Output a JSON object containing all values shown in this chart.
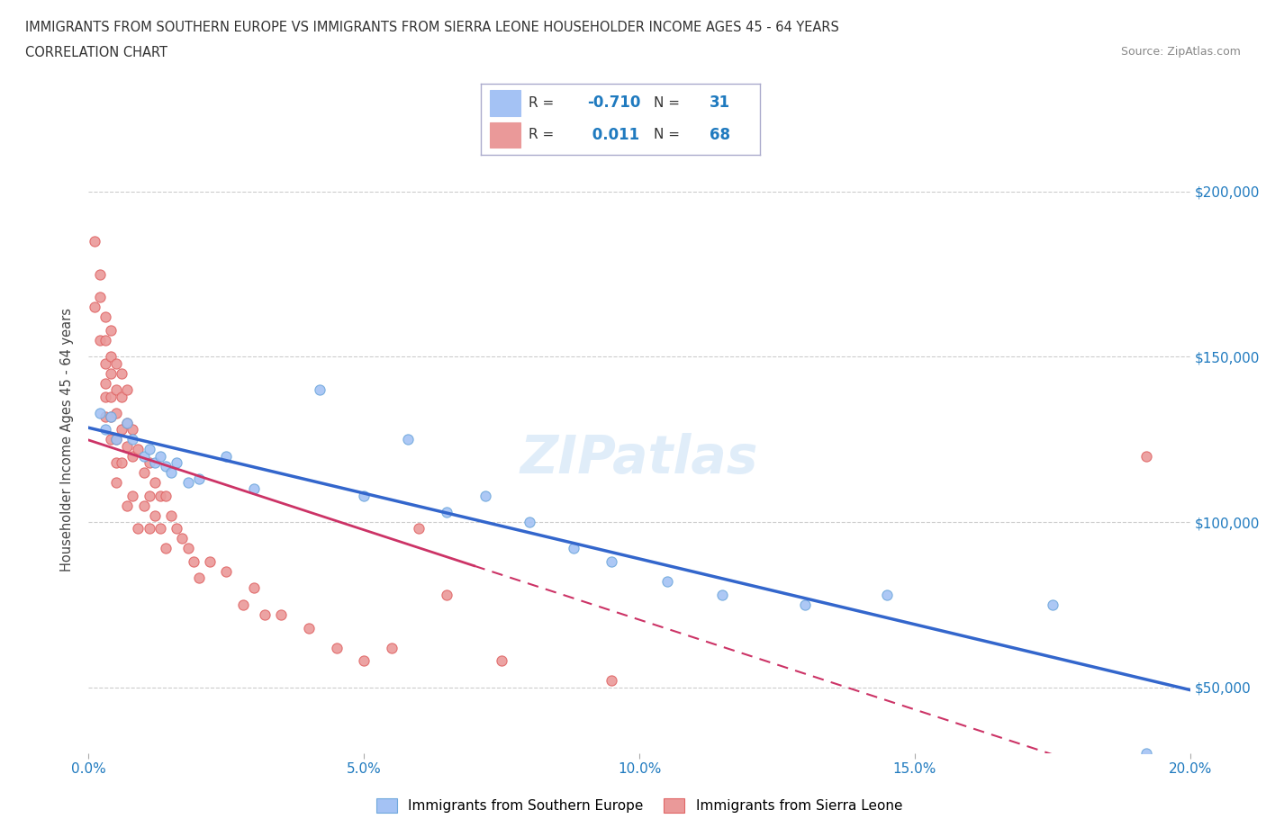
{
  "title_line1": "IMMIGRANTS FROM SOUTHERN EUROPE VS IMMIGRANTS FROM SIERRA LEONE HOUSEHOLDER INCOME AGES 45 - 64 YEARS",
  "title_line2": "CORRELATION CHART",
  "source_text": "Source: ZipAtlas.com",
  "ylabel": "Householder Income Ages 45 - 64 years",
  "xlim": [
    0.0,
    0.2
  ],
  "ylim": [
    30000,
    220000
  ],
  "xtick_labels": [
    "0.0%",
    "5.0%",
    "10.0%",
    "15.0%",
    "20.0%"
  ],
  "xtick_vals": [
    0.0,
    0.05,
    0.1,
    0.15,
    0.2
  ],
  "ytick_vals": [
    50000,
    100000,
    150000,
    200000
  ],
  "ytick_labels": [
    "$50,000",
    "$100,000",
    "$150,000",
    "$200,000"
  ],
  "ytick_color": "#1f7abf",
  "xtick_color": "#1f7abf",
  "blue_color": "#a4c2f4",
  "blue_edge_color": "#6fa8dc",
  "pink_color": "#ea9999",
  "pink_edge_color": "#e06666",
  "blue_line_color": "#3366cc",
  "pink_line_color": "#cc3366",
  "R_blue": -0.71,
  "N_blue": 31,
  "R_pink": 0.011,
  "N_pink": 68,
  "legend_label_blue": "Immigrants from Southern Europe",
  "legend_label_pink": "Immigrants from Sierra Leone",
  "blue_x": [
    0.002,
    0.003,
    0.004,
    0.005,
    0.007,
    0.008,
    0.01,
    0.011,
    0.012,
    0.013,
    0.014,
    0.015,
    0.016,
    0.018,
    0.02,
    0.025,
    0.03,
    0.042,
    0.05,
    0.058,
    0.065,
    0.072,
    0.08,
    0.088,
    0.095,
    0.105,
    0.115,
    0.13,
    0.145,
    0.175,
    0.192
  ],
  "blue_y": [
    133000,
    128000,
    132000,
    125000,
    130000,
    125000,
    120000,
    122000,
    118000,
    120000,
    117000,
    115000,
    118000,
    112000,
    113000,
    120000,
    110000,
    140000,
    108000,
    125000,
    103000,
    108000,
    100000,
    92000,
    88000,
    82000,
    78000,
    75000,
    78000,
    75000,
    30000
  ],
  "pink_x": [
    0.001,
    0.001,
    0.002,
    0.002,
    0.002,
    0.003,
    0.003,
    0.003,
    0.003,
    0.003,
    0.003,
    0.004,
    0.004,
    0.004,
    0.004,
    0.004,
    0.004,
    0.005,
    0.005,
    0.005,
    0.005,
    0.005,
    0.005,
    0.006,
    0.006,
    0.006,
    0.006,
    0.007,
    0.007,
    0.007,
    0.007,
    0.008,
    0.008,
    0.008,
    0.009,
    0.009,
    0.01,
    0.01,
    0.011,
    0.011,
    0.011,
    0.012,
    0.012,
    0.013,
    0.013,
    0.014,
    0.014,
    0.015,
    0.016,
    0.017,
    0.018,
    0.019,
    0.02,
    0.022,
    0.025,
    0.028,
    0.03,
    0.032,
    0.035,
    0.04,
    0.045,
    0.05,
    0.055,
    0.06,
    0.065,
    0.075,
    0.095,
    0.192
  ],
  "pink_y": [
    185000,
    165000,
    175000,
    168000,
    155000,
    162000,
    155000,
    148000,
    142000,
    138000,
    132000,
    158000,
    150000,
    145000,
    138000,
    132000,
    125000,
    148000,
    140000,
    133000,
    125000,
    118000,
    112000,
    145000,
    138000,
    128000,
    118000,
    140000,
    130000,
    123000,
    105000,
    128000,
    120000,
    108000,
    122000,
    98000,
    115000,
    105000,
    118000,
    108000,
    98000,
    112000,
    102000,
    108000,
    98000,
    108000,
    92000,
    102000,
    98000,
    95000,
    92000,
    88000,
    83000,
    88000,
    85000,
    75000,
    80000,
    72000,
    72000,
    68000,
    62000,
    58000,
    62000,
    98000,
    78000,
    58000,
    52000,
    120000
  ],
  "watermark_text": "ZIPatlas",
  "background_color": "#ffffff",
  "grid_color": "#cccccc"
}
